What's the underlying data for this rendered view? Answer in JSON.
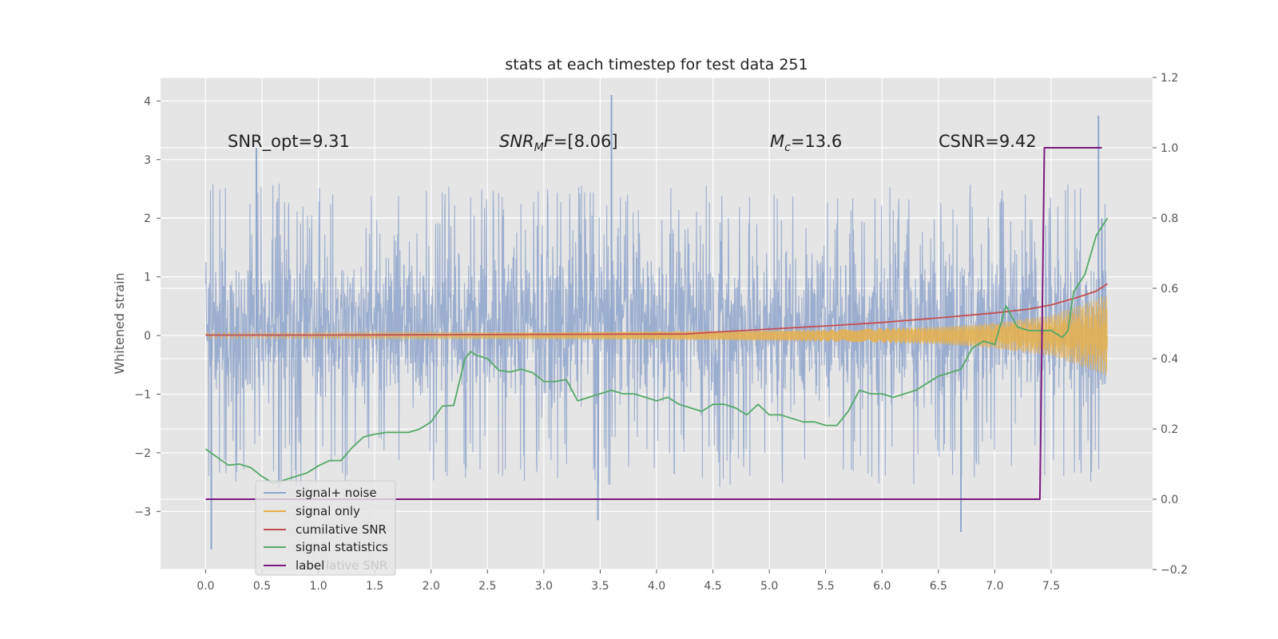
{
  "chart_data": {
    "type": "line",
    "title": "stats at each timestep for test data 251",
    "xlabel": "",
    "ylabel": "Whitened strain",
    "xlim": [
      -0.4,
      8.4
    ],
    "ylim": [
      -3.99,
      4.4
    ],
    "y2lim": [
      -0.2,
      1.2
    ],
    "x_ticks": [
      "0.0",
      "0.5",
      "1.0",
      "1.5",
      "2.0",
      "2.5",
      "3.0",
      "3.5",
      "4.0",
      "4.5",
      "5.0",
      "5.5",
      "6.0",
      "6.5",
      "7.0",
      "7.5"
    ],
    "y_ticks": [
      "−3",
      "−2",
      "−1",
      "0",
      "1",
      "2",
      "3",
      "4"
    ],
    "y2_ticks": [
      "−0.2",
      "0.0",
      "0.2",
      "0.4",
      "0.6",
      "0.8",
      "1.0",
      "1.2"
    ],
    "grid": true,
    "annotations": {
      "snr_opt": "SNR_opt=9.31",
      "snr_mf_base": "SNR",
      "snr_mf_sub": "M",
      "snr_mf_rest": "F=[8.06]",
      "mc_base": "M",
      "mc_sub": "c",
      "mc_rest": "=13.6",
      "csnr": "CSNR=9.42"
    },
    "legend": {
      "placement": "lower-left",
      "entries": [
        "signal+ noise",
        "signal only",
        "cumilative SNR",
        "signal statistics",
        "label"
      ],
      "hidden_text": "lative SNR"
    },
    "series": [
      {
        "name": "signal+ noise",
        "axis": "left",
        "color": "#8fa5cb",
        "noise_band": [
          -1.6,
          2.0
        ],
        "peaks": [
          [
            0.05,
            -3.65
          ],
          [
            0.45,
            3.2
          ],
          [
            0.65,
            -2.6
          ],
          [
            3.48,
            -3.15
          ],
          [
            3.6,
            4.1
          ],
          [
            6.7,
            -3.35
          ],
          [
            7.92,
            3.75
          ],
          [
            7.95,
            2.0
          ]
        ]
      },
      {
        "name": "signal only",
        "axis": "left",
        "color": "#e8b04a",
        "envelope": [
          [
            0,
            0.05
          ],
          [
            3.0,
            0.06
          ],
          [
            4.5,
            0.08
          ],
          [
            5.5,
            0.1
          ],
          [
            6.5,
            0.15
          ],
          [
            7.0,
            0.22
          ],
          [
            7.5,
            0.35
          ],
          [
            7.8,
            0.55
          ],
          [
            8.0,
            0.7
          ]
        ]
      },
      {
        "name": "cumilative SNR",
        "axis": "right",
        "color": "#c44e52",
        "x": [
          0,
          1.0,
          2.0,
          3.0,
          4.0,
          4.25,
          4.5,
          5.0,
          5.5,
          6.0,
          6.5,
          7.0,
          7.3,
          7.5,
          7.7,
          7.9,
          8.0
        ],
        "values": [
          0.467,
          0.467,
          0.468,
          0.469,
          0.47,
          0.47,
          0.475,
          0.484,
          0.493,
          0.503,
          0.516,
          0.53,
          0.541,
          0.553,
          0.571,
          0.592,
          0.613
        ]
      },
      {
        "name": "signal statistics",
        "axis": "right",
        "color": "#55a868",
        "x": [
          0,
          0.1,
          0.2,
          0.3,
          0.4,
          0.5,
          0.6,
          0.7,
          0.8,
          0.9,
          1.0,
          1.1,
          1.2,
          1.3,
          1.4,
          1.5,
          1.6,
          1.7,
          1.8,
          1.9,
          2.0,
          2.1,
          2.2,
          2.3,
          2.35,
          2.4,
          2.5,
          2.6,
          2.7,
          2.8,
          2.9,
          3.0,
          3.1,
          3.2,
          3.3,
          3.4,
          3.5,
          3.6,
          3.7,
          3.8,
          3.9,
          4.0,
          4.1,
          4.2,
          4.3,
          4.4,
          4.5,
          4.6,
          4.7,
          4.8,
          4.9,
          5.0,
          5.1,
          5.2,
          5.3,
          5.4,
          5.5,
          5.6,
          5.7,
          5.8,
          5.9,
          6.0,
          6.1,
          6.2,
          6.3,
          6.4,
          6.5,
          6.6,
          6.7,
          6.8,
          6.9,
          7.0,
          7.1,
          7.2,
          7.3,
          7.4,
          7.5,
          7.6,
          7.65,
          7.7,
          7.8,
          7.9,
          8.0
        ],
        "values": [
          0.143,
          0.12,
          0.097,
          0.1,
          0.09,
          0.065,
          0.045,
          0.055,
          0.065,
          0.075,
          0.095,
          0.11,
          0.11,
          0.147,
          0.177,
          0.185,
          0.19,
          0.19,
          0.19,
          0.2,
          0.22,
          0.265,
          0.267,
          0.4,
          0.42,
          0.41,
          0.4,
          0.367,
          0.362,
          0.37,
          0.36,
          0.335,
          0.335,
          0.34,
          0.28,
          0.29,
          0.3,
          0.31,
          0.3,
          0.3,
          0.29,
          0.28,
          0.29,
          0.27,
          0.26,
          0.25,
          0.27,
          0.27,
          0.26,
          0.24,
          0.27,
          0.24,
          0.24,
          0.23,
          0.22,
          0.22,
          0.21,
          0.21,
          0.25,
          0.31,
          0.3,
          0.3,
          0.29,
          0.3,
          0.31,
          0.33,
          0.35,
          0.36,
          0.37,
          0.43,
          0.45,
          0.44,
          0.55,
          0.49,
          0.48,
          0.48,
          0.48,
          0.46,
          0.48,
          0.59,
          0.64,
          0.75,
          0.8
        ]
      },
      {
        "name": "label",
        "axis": "right",
        "color": "#7b1a7f",
        "x": [
          0,
          7.4,
          7.44,
          7.95
        ],
        "values": [
          0,
          0,
          1,
          1
        ]
      }
    ]
  }
}
